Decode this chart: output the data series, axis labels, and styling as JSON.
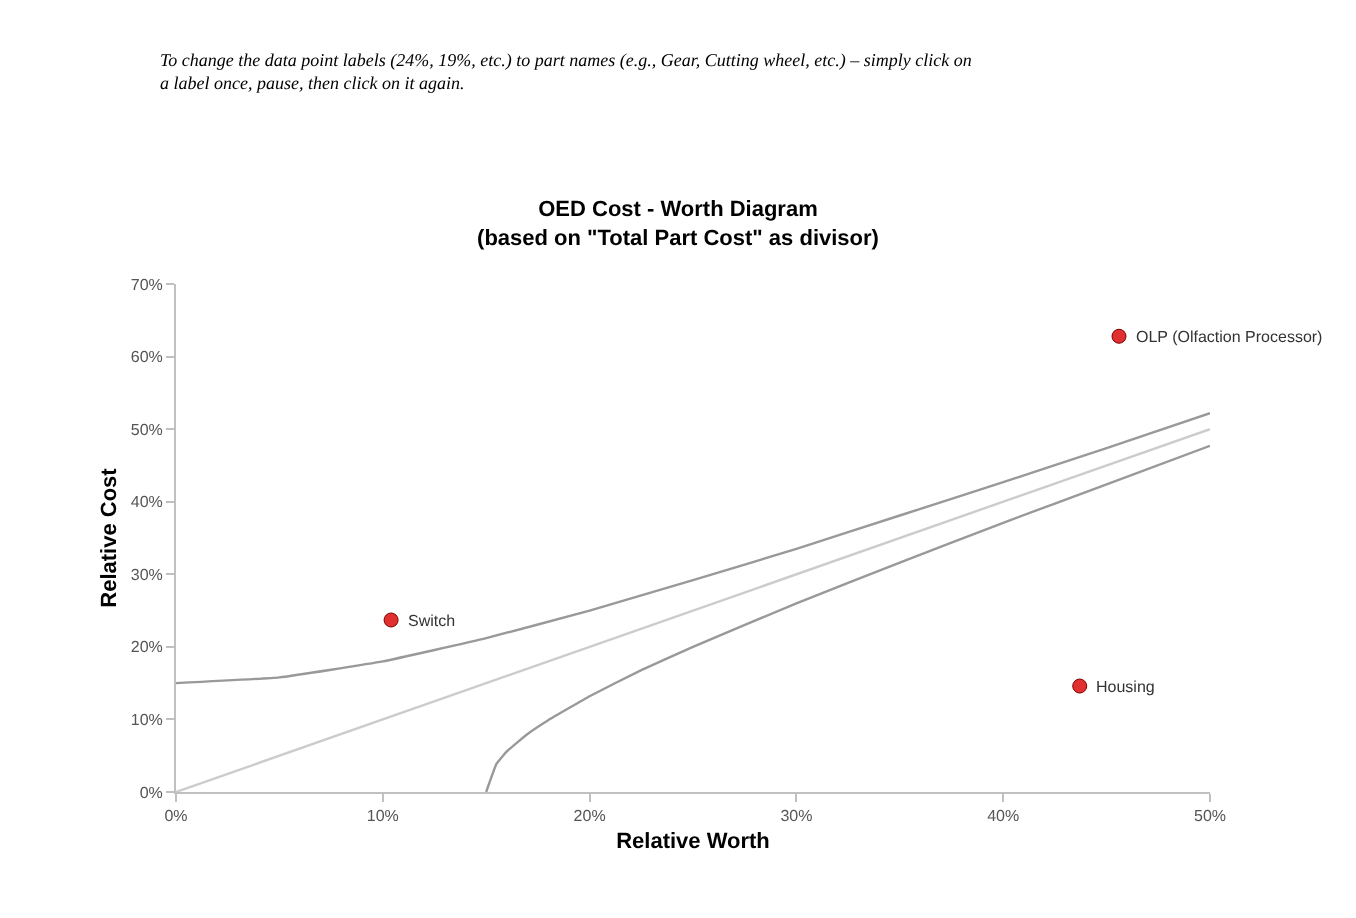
{
  "chart_data": {
    "type": "line",
    "title": "OED Cost - Worth Diagram\n(based on \"Total Part Cost\" as divisor)",
    "xlabel": "Relative Worth",
    "ylabel": "Relative Cost",
    "xlim": [
      0,
      50
    ],
    "ylim": [
      0,
      70
    ],
    "xticks": [
      {
        "value": 0,
        "label": "0%"
      },
      {
        "value": 10,
        "label": "10%"
      },
      {
        "value": 20,
        "label": "20%"
      },
      {
        "value": 30,
        "label": "30%"
      },
      {
        "value": 40,
        "label": "40%"
      },
      {
        "value": 50,
        "label": "50%"
      }
    ],
    "yticks": [
      {
        "value": 0,
        "label": "0%"
      },
      {
        "value": 10,
        "label": "10%"
      },
      {
        "value": 20,
        "label": "20%"
      },
      {
        "value": 30,
        "label": "30%"
      },
      {
        "value": 40,
        "label": "40%"
      },
      {
        "value": 50,
        "label": "50%"
      },
      {
        "value": 60,
        "label": "60%"
      },
      {
        "value": 70,
        "label": "70%"
      }
    ],
    "series": [
      {
        "color": "#999999",
        "x": [
          0,
          5,
          10,
          15,
          20,
          25,
          30,
          35,
          40,
          45,
          50
        ],
        "values": [
          15,
          15.8,
          18.0,
          21.2,
          25,
          29.2,
          33.5,
          38.1,
          42.7,
          47.4,
          52.2
        ]
      },
      {
        "color": "#cccccc",
        "x": [
          0,
          50
        ],
        "values": [
          0,
          50
        ]
      },
      {
        "color": "#999999",
        "x": [
          15,
          15.5,
          16,
          17,
          18,
          20,
          22.5,
          25,
          30,
          35,
          40,
          45,
          50
        ],
        "values": [
          0,
          3.9,
          5.6,
          8.0,
          9.9,
          13.2,
          16.8,
          20,
          26,
          31.6,
          37.1,
          42.4,
          47.7
        ]
      },
      {
        "type": "scatter",
        "marker": "circle",
        "color": "#e03030",
        "x": [
          10.4,
          45.6,
          43.7
        ],
        "values": [
          23.7,
          62.8,
          14.6
        ]
      }
    ],
    "annotations": [
      "To change the data point labels (24%, 19%, etc.) to part names (e.g., Gear, Cutting wheel, etc.) – simply click on a label once, pause, then click on it again.",
      {
        "text": "Switch",
        "x": 10.4,
        "y": 23.7
      },
      {
        "text": "OLP (Olfaction Processor)",
        "x": 45.6,
        "y": 62.8
      },
      {
        "text": "Housing",
        "x": 43.7,
        "y": 14.6
      }
    ]
  }
}
